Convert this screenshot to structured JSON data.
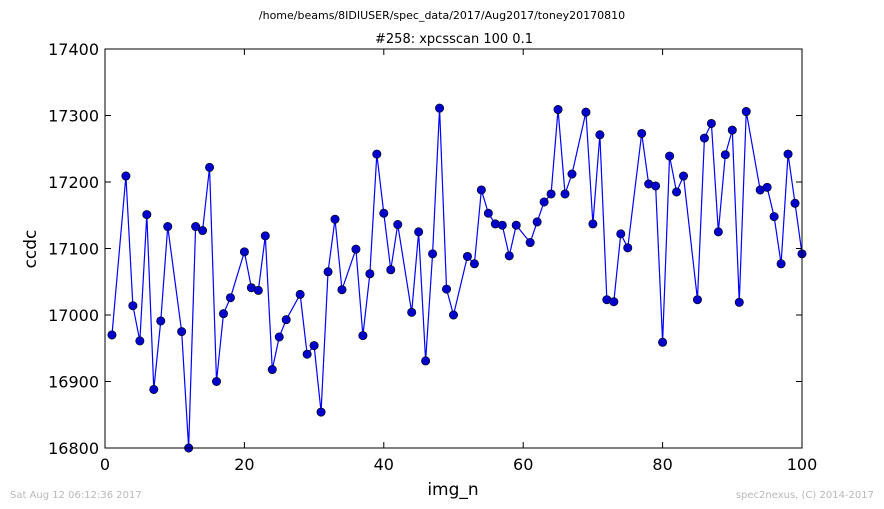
{
  "figure": {
    "suptitle": "/home/beams/8IDIUSER/spec_data/2017/Aug2017/toney20170810",
    "footer_left": "Sat Aug 12 06:12:36 2017",
    "footer_right": "spec2nexus, (C) 2014-2017"
  },
  "chart_data": {
    "type": "line",
    "title": "#258: xpcsscan 100 0.1",
    "xlabel": "img_n",
    "ylabel": "ccdc",
    "xlim": [
      0,
      100
    ],
    "ylim": [
      16800,
      17400
    ],
    "xticks": [
      0,
      20,
      40,
      60,
      80,
      100
    ],
    "yticks": [
      16800,
      16900,
      17000,
      17100,
      17200,
      17300,
      17400
    ],
    "grid": false,
    "marker": "circle",
    "line_color": "#0000ff",
    "marker_color": "#0000cd",
    "series": [
      {
        "x": [
          1,
          3,
          4,
          5,
          6,
          7,
          8,
          9,
          11,
          12,
          13,
          14,
          15,
          16,
          17,
          18,
          20,
          21,
          22,
          23,
          24,
          25,
          26,
          28,
          29,
          30,
          31,
          32,
          33,
          34,
          36,
          37,
          38,
          39,
          40,
          41,
          42,
          44,
          45,
          46,
          47,
          48,
          49,
          50,
          52,
          53,
          54,
          55,
          56,
          57,
          58,
          59,
          61,
          62,
          63,
          64,
          65,
          66,
          67,
          69,
          70,
          71,
          72,
          73,
          74,
          75,
          77,
          78,
          79,
          80,
          81,
          82,
          83,
          85,
          86,
          87,
          88,
          89,
          90,
          91,
          92,
          94,
          95,
          96,
          97,
          98,
          99,
          100
        ],
        "y": [
          16970,
          17209,
          17014,
          16961,
          17151,
          16888,
          16991,
          17133,
          16975,
          16800,
          17133,
          17127,
          17222,
          16900,
          17002,
          17026,
          17095,
          17041,
          17037,
          17119,
          16918,
          16967,
          16993,
          17031,
          16941,
          16954,
          16854,
          17065,
          17144,
          17038,
          17099,
          16969,
          17062,
          17242,
          17153,
          17068,
          17136,
          17004,
          17125,
          16931,
          17092,
          17311,
          17039,
          17000,
          17088,
          17077,
          17188,
          17153,
          17137,
          17135,
          17089,
          17135,
          17109,
          17140,
          17170,
          17182,
          17309,
          17182,
          17212,
          17305,
          17137,
          17271,
          17023,
          17020,
          17122,
          17101,
          17273,
          17197,
          17194,
          16959,
          17239,
          17185,
          17209,
          17023,
          17266,
          17288,
          17125,
          17241,
          17278,
          17019,
          17306,
          17188,
          17192,
          17148,
          17077,
          17242,
          17168,
          17092
        ]
      }
    ]
  }
}
